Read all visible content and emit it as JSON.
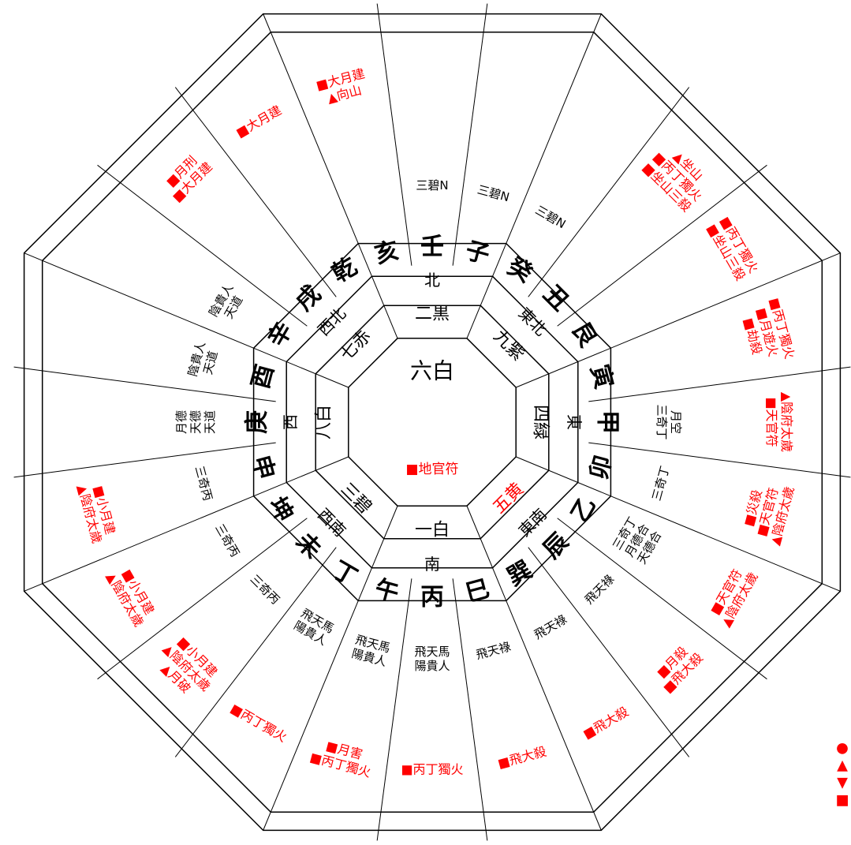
{
  "colors": {
    "line": "#000000",
    "red": "#ff0000",
    "text": "#000000"
  },
  "center": {
    "star": "六白",
    "note": "■地官符"
  },
  "palaces": [
    {
      "dir": "北",
      "star": "二黒",
      "dir_color": "#000000",
      "star_color": "#000000"
    },
    {
      "dir": "東北",
      "star": "九紫",
      "dir_color": "#000000",
      "star_color": "#000000"
    },
    {
      "dir": "東",
      "star": "四緑",
      "dir_color": "#000000",
      "star_color": "#000000"
    },
    {
      "dir": "東南",
      "star": "五黄",
      "dir_color": "#000000",
      "star_color": "#ff0000"
    },
    {
      "dir": "南",
      "star": "一白",
      "dir_color": "#000000",
      "star_color": "#000000"
    },
    {
      "dir": "西南",
      "star": "三碧",
      "dir_color": "#000000",
      "star_color": "#000000"
    },
    {
      "dir": "西",
      "star": "八白",
      "dir_color": "#000000",
      "star_color": "#000000"
    },
    {
      "dir": "西北",
      "star": "七赤",
      "dir_color": "#000000",
      "star_color": "#000000"
    }
  ],
  "mountains": [
    "壬",
    "子",
    "癸",
    "丑",
    "艮",
    "寅",
    "甲",
    "卯",
    "乙",
    "辰",
    "巽",
    "巳",
    "丙",
    "午",
    "丁",
    "未",
    "坤",
    "申",
    "庚",
    "酉",
    "辛",
    "戌",
    "乾",
    "亥"
  ],
  "inner_notes": [
    "三碧N",
    "三碧N",
    "三碧N",
    "",
    "",
    "",
    "月空\n三奇丁",
    "三奇丁",
    "天德合\n月德合\n三奇丁",
    "飛天祿",
    "飛天祿",
    "飛天祿",
    "陽貴人\n飛天馬",
    "陽貴人\n飛天馬",
    "陽貴人\n飛天馬",
    "三奇丙",
    "三奇丙",
    "三奇丙",
    "月德\n天德\n天道",
    "陰貴人\n天道",
    "陰貴人\n天道",
    "",
    "",
    ""
  ],
  "outer_notes": [
    "",
    "",
    "",
    "▲坐山\n■丙丁獨火\n■坐山三殺",
    "■丙丁獨火\n■坐山三殺",
    "■丙丁獨火\n■月遊火\n■劫殺",
    "▲陰府太歲\n■天官符",
    "▲陰府太歲\n■天官符\n■災殺",
    "▲陰府太歲\n■天官符",
    "■飛大殺\n■月殺",
    "■飛大殺",
    "■飛大殺",
    "■丙丁獨火",
    "■丙丁獨火\n■月害",
    "■丙丁獨火",
    "▲月破\n▲陰府太歲\n■小月建",
    "▲陰府太歲\n■小月建",
    "▲陰府太歲\n■小月建",
    "",
    "",
    "",
    "■月刑\n■大月建",
    "■大月建",
    "■大月建\n▲向山"
  ],
  "legend": [
    "●",
    "▲",
    "▼",
    "■"
  ]
}
